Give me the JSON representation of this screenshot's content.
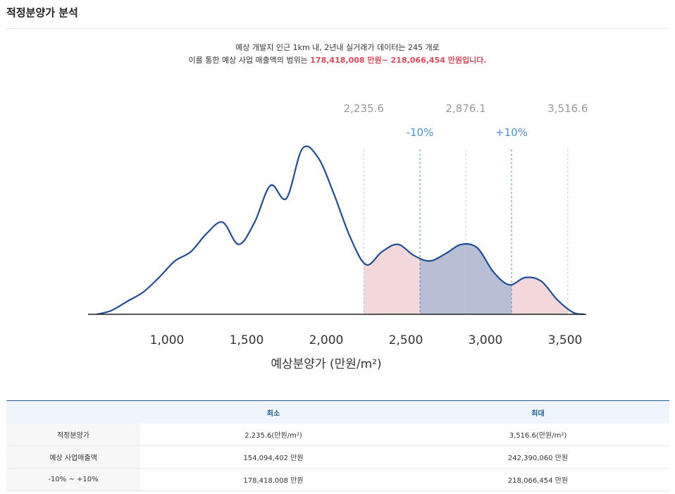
{
  "section_title": "적정분양가 분석",
  "summary": {
    "line1": "예상 개발지 인근 1km 내, 2년내 실거래가 데이터는 245 개로",
    "line2_prefix": "이를 통한 예상 사업 매출액의 범위는 ",
    "line2_highlight": "178,418,008 만원~ 218,066,454 만원입니다."
  },
  "colors": {
    "curve": "#1f4e96",
    "range_fill": "#f0c9ce",
    "band_fill": "#b3bbd6",
    "marker_gray": "#bfc6d2",
    "marker_blue": "#4a90d9",
    "highlight": "#e04a5a"
  },
  "chart_data": {
    "type": "area",
    "xlabel": "예상분양가 (만원/m²)",
    "ylabel": "",
    "xlim": [
      500,
      3650
    ],
    "x_ticks": [
      1000,
      1500,
      2000,
      2500,
      3000,
      3500
    ],
    "x_tick_labels": [
      "1,000",
      "1,500",
      "2,000",
      "2,500",
      "3,000",
      "3,500"
    ],
    "density": {
      "x": [
        560,
        650,
        750,
        850,
        950,
        1050,
        1150,
        1250,
        1350,
        1450,
        1550,
        1650,
        1750,
        1850,
        1950,
        2050,
        2150,
        2250,
        2350,
        2450,
        2550,
        2650,
        2750,
        2850,
        2950,
        3050,
        3150,
        3250,
        3350,
        3450,
        3550,
        3620
      ],
      "y": [
        0.0,
        0.02,
        0.07,
        0.12,
        0.2,
        0.29,
        0.34,
        0.44,
        0.5,
        0.38,
        0.5,
        0.7,
        0.63,
        0.9,
        0.85,
        0.65,
        0.42,
        0.27,
        0.34,
        0.38,
        0.32,
        0.29,
        0.33,
        0.38,
        0.36,
        0.23,
        0.16,
        0.2,
        0.18,
        0.08,
        0.01,
        0.0
      ]
    },
    "markers": [
      {
        "value": 2235.6,
        "label": "2,235.6"
      },
      {
        "value": 2876.1,
        "label": "2,876.1"
      },
      {
        "value": 3516.6,
        "label": "3,516.6"
      }
    ],
    "band_markers": [
      {
        "value": 2588.4,
        "label": "-10%"
      },
      {
        "value": 3163.8,
        "label": "+10%"
      }
    ],
    "range_fill": [
      2235.6,
      3516.6
    ],
    "band_fill": [
      2588.4,
      3163.8
    ]
  },
  "table": {
    "headers": [
      "",
      "최소",
      "최대"
    ],
    "rows": [
      {
        "label": "적정분양가",
        "min": "2,235.6(만원/m²)",
        "max": "3,516.6(만원/m²)"
      },
      {
        "label": "예상 사업매출액",
        "min": "154,094,402 만원",
        "max": "242,390,060 만원"
      },
      {
        "label": "-10% ~ +10%",
        "min": "178,418,008 만원",
        "max": "218,066,454 만원"
      }
    ]
  }
}
